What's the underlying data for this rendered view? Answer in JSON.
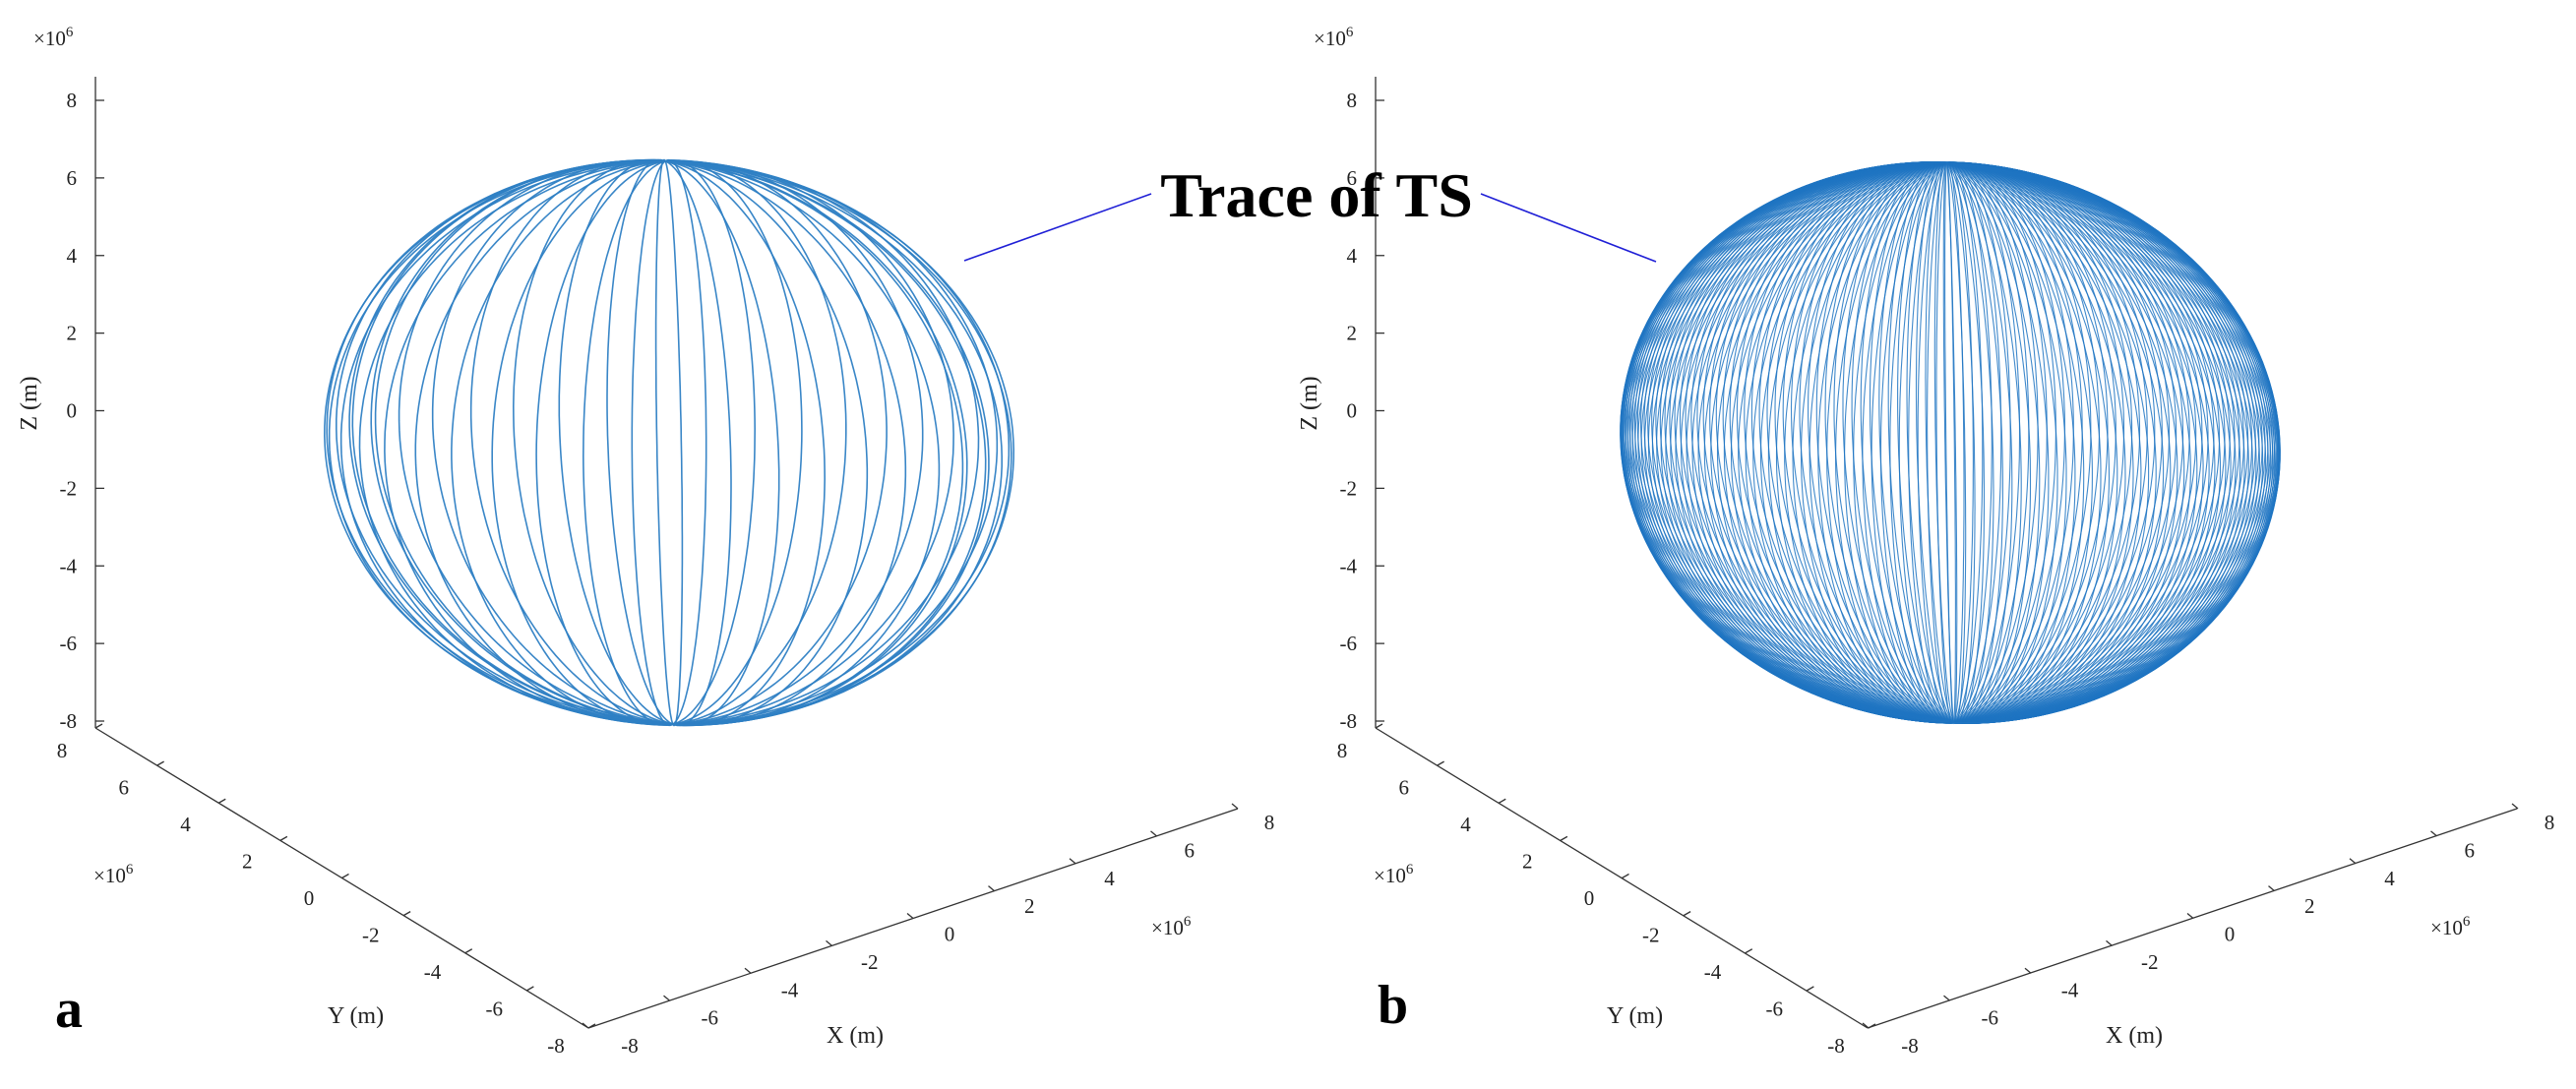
{
  "annotation": {
    "text": "Trace of TS",
    "color": "#1f1fd6"
  },
  "chart_data": [
    {
      "type": "line",
      "panel_label": "a",
      "zlabel": "Z (m)",
      "ylabel": "Y (m)",
      "xlabel": "X (m)",
      "zticks": [
        "8",
        "6",
        "4",
        "2",
        "0",
        "-2",
        "-4",
        "-6",
        "-8"
      ],
      "yticks": [
        "8",
        "6",
        "4",
        "2",
        "0",
        "-2",
        "-4",
        "-6",
        "-8"
      ],
      "xticks": [
        "-8",
        "-6",
        "-4",
        "-2",
        "0",
        "2",
        "4",
        "6",
        "8"
      ],
      "z_multiplier": "×10",
      "y_multiplier": "×10",
      "x_multiplier": "×10",
      "multiplier_exponent": "6",
      "xlim": [
        -8000000,
        8000000
      ],
      "ylim": [
        -8000000,
        8000000
      ],
      "zlim": [
        -8000000,
        8000000
      ],
      "series": [
        {
          "values_description": "orbit trace",
          "color": "#2e7fc4",
          "orbit_radius": 7000000,
          "orbit_planes": 24
        }
      ]
    },
    {
      "type": "line",
      "panel_label": "b",
      "zlabel": "Z (m)",
      "ylabel": "Y (m)",
      "xlabel": "X (m)",
      "zticks": [
        "8",
        "6",
        "4",
        "2",
        "0",
        "-2",
        "-4",
        "-6",
        "-8"
      ],
      "yticks": [
        "8",
        "6",
        "4",
        "2",
        "0",
        "-2",
        "-4",
        "-6",
        "-8"
      ],
      "xticks": [
        "-8",
        "-6",
        "-4",
        "-2",
        "0",
        "2",
        "4",
        "6",
        "8"
      ],
      "z_multiplier": "×10",
      "y_multiplier": "×10",
      "x_multiplier": "×10",
      "multiplier_exponent": "6",
      "xlim": [
        -8000000,
        8000000
      ],
      "ylim": [
        -8000000,
        8000000
      ],
      "zlim": [
        -8000000,
        8000000
      ],
      "series": [
        {
          "values_description": "orbit trace",
          "color": "#1f74c2",
          "orbit_radius": 7000000,
          "orbit_planes": 110
        }
      ]
    }
  ]
}
